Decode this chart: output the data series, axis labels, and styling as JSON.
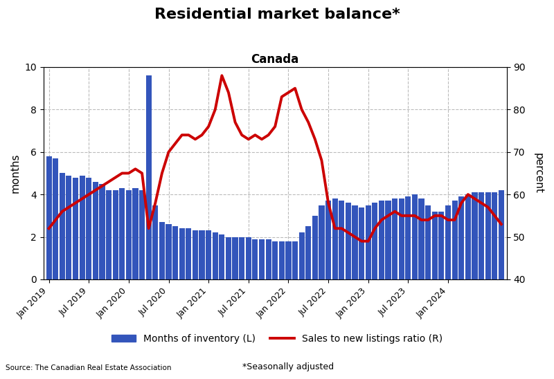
{
  "title": "Residential market balance*",
  "subtitle": "Canada",
  "ylabel_left": "months",
  "ylabel_right": "percent",
  "source_text": "Source: The Canadian Real Estate Association",
  "footnote": "*Seasonally adjusted",
  "legend_bar": "Months of inventory (L)",
  "legend_line": "Sales to new listings ratio (R)",
  "ylim_left": [
    0,
    10
  ],
  "ylim_right": [
    40,
    90
  ],
  "yticks_left": [
    0,
    2,
    4,
    6,
    8,
    10
  ],
  "yticks_right": [
    40,
    50,
    60,
    70,
    80,
    90
  ],
  "bar_color": "#3355bb",
  "line_color": "#cc0000",
  "background_color": "#ffffff",
  "grid_color": "#bbbbbb",
  "bar_values": [
    5.8,
    5.7,
    5.0,
    4.9,
    4.8,
    4.9,
    4.8,
    4.6,
    4.5,
    4.2,
    4.2,
    4.3,
    4.2,
    4.3,
    4.2,
    9.6,
    3.5,
    2.7,
    2.6,
    2.5,
    2.4,
    2.4,
    2.3,
    2.3,
    2.3,
    2.2,
    2.1,
    2.0,
    2.0,
    2.0,
    2.0,
    1.9,
    1.9,
    1.9,
    1.8,
    1.8,
    1.8,
    1.8,
    2.2,
    2.5,
    3.0,
    3.5,
    3.7,
    3.8,
    3.7,
    3.6,
    3.5,
    3.4,
    3.5,
    3.6,
    3.7,
    3.7,
    3.8,
    3.8,
    3.9,
    4.0,
    3.8,
    3.5,
    3.2,
    3.2,
    3.5,
    3.7,
    3.9,
    4.0,
    4.1,
    4.1,
    4.1,
    4.1,
    4.2
  ],
  "line_values_pct": [
    52,
    54,
    56,
    57,
    58,
    59,
    60,
    61,
    62,
    63,
    64,
    65,
    65,
    66,
    65,
    52,
    58,
    65,
    70,
    72,
    74,
    74,
    73,
    74,
    76,
    80,
    88,
    84,
    77,
    74,
    73,
    74,
    73,
    74,
    76,
    83,
    84,
    85,
    80,
    77,
    73,
    68,
    58,
    52,
    52,
    51,
    50,
    49,
    49,
    52,
    54,
    55,
    56,
    55,
    55,
    55,
    54,
    54,
    55,
    55,
    54,
    54,
    58,
    60,
    59,
    58,
    57,
    55,
    53
  ],
  "xtick_labels": [
    "Jan 2019",
    "Jul 2019",
    "Jan 2020",
    "Jul 2020",
    "Jan 2021",
    "Jul 2021",
    "Jan 2022",
    "Jul 2022",
    "Jan 2023",
    "Jul 2023",
    "Jan 2024"
  ],
  "xtick_positions": [
    0,
    6,
    12,
    18,
    24,
    30,
    36,
    42,
    48,
    54,
    60
  ]
}
